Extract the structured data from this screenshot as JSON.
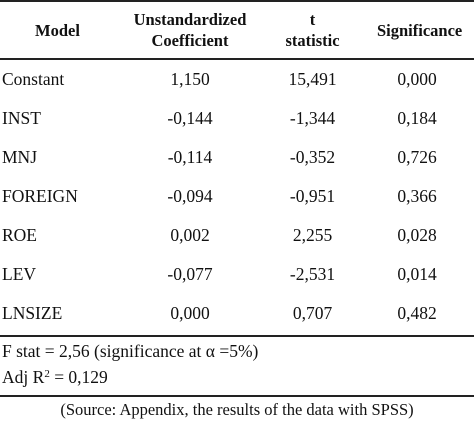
{
  "table": {
    "headers": [
      [
        "Model"
      ],
      [
        "Unstandardized",
        "Coefficient"
      ],
      [
        "t",
        "statistic"
      ],
      [
        "Significance"
      ]
    ],
    "rows": [
      [
        "Constant",
        "1,150",
        "15,491",
        "0,000"
      ],
      [
        "INST",
        "-0,144",
        "-1,344",
        "0,184"
      ],
      [
        "MNJ",
        "-0,114",
        "-0,352",
        "0,726"
      ],
      [
        "FOREIGN",
        "-0,094",
        "-0,951",
        "0,366"
      ],
      [
        "ROE",
        "0,002",
        "2,255",
        "0,028"
      ],
      [
        "LEV",
        "-0,077",
        "-2,531",
        "0,014"
      ],
      [
        "LNSIZE",
        "0,000",
        "0,707",
        "0,482"
      ]
    ]
  },
  "notes": {
    "f_stat": "F stat = 2,56 (significance at α =5%)",
    "adj_r2_prefix": "Adj R",
    "adj_r2_sup": "2",
    "adj_r2_suffix": " = 0,129"
  },
  "source": "(Source: Appendix, the results of the data with SPSS)"
}
